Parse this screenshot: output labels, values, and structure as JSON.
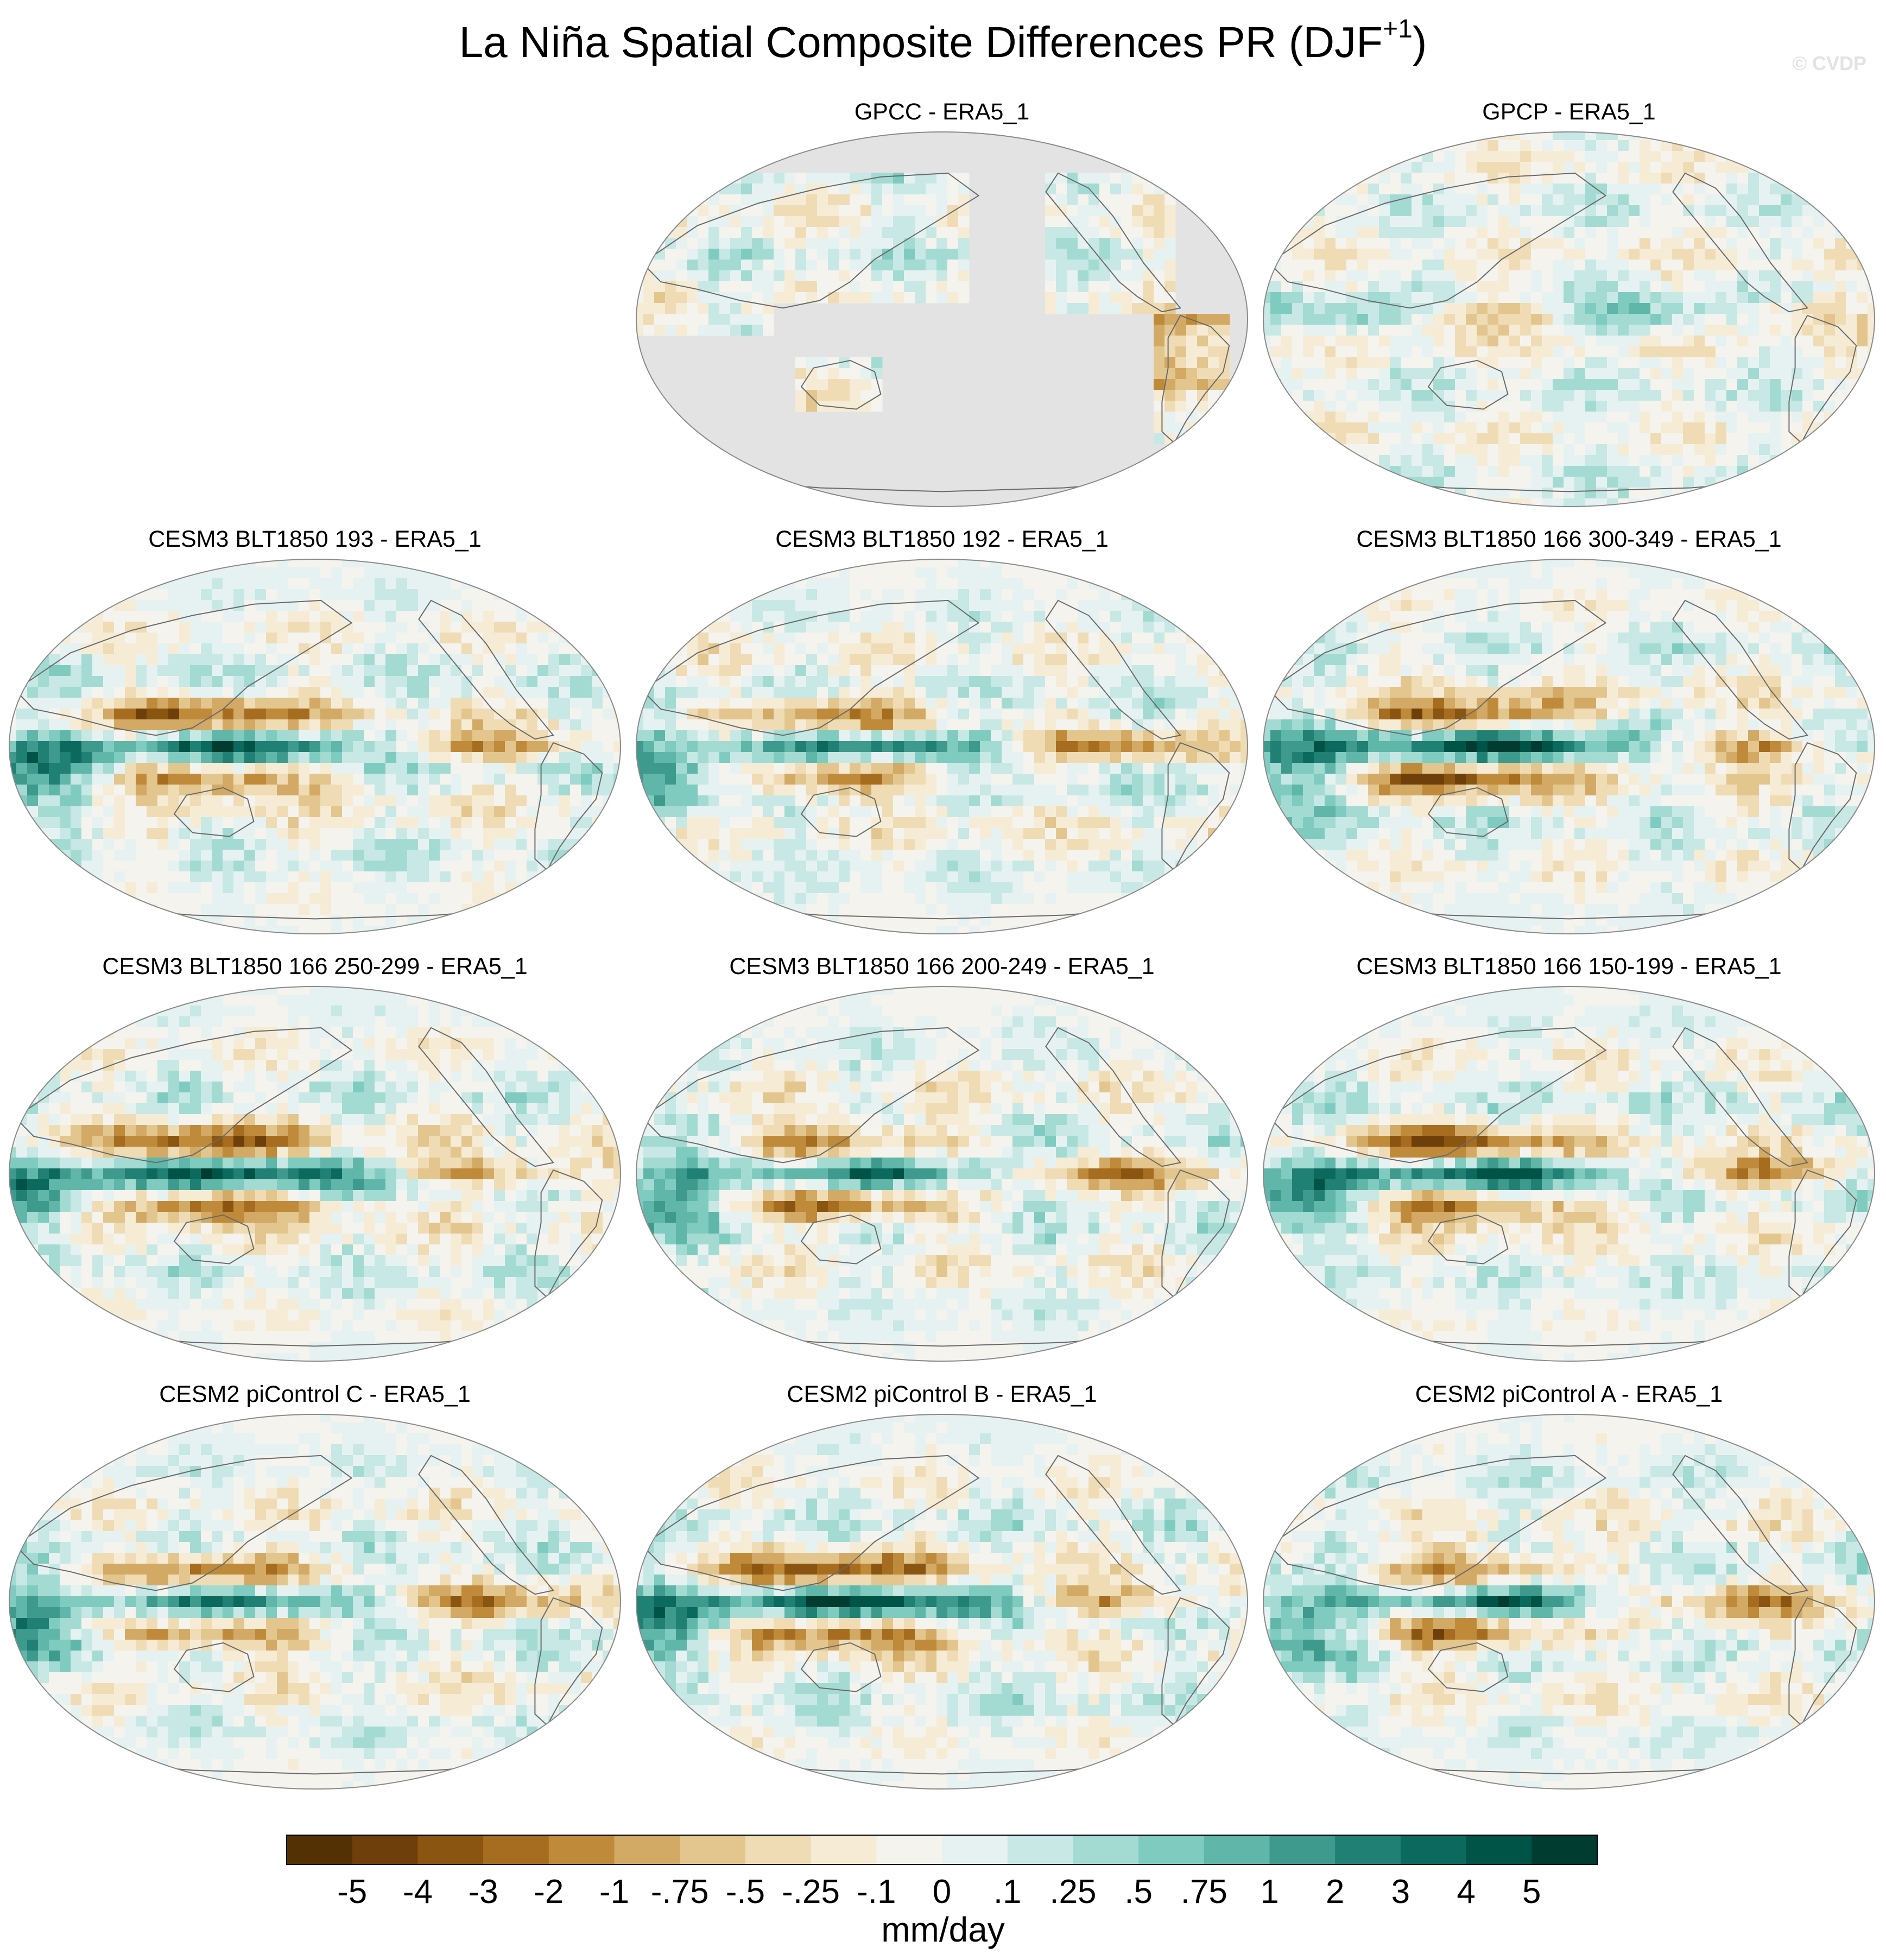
{
  "figure": {
    "title_main": "La Niña Spatial Composite Differences PR (DJF",
    "title_sup": "+1",
    "title_close": ")",
    "copyright": "© CVDP"
  },
  "panels": [
    {
      "id": "gpcc",
      "title": "GPCC - ERA5_1",
      "row": 0,
      "col": 1,
      "land_only": true,
      "seed": 3
    },
    {
      "id": "gpcp",
      "title": "GPCP - ERA5_1",
      "row": 0,
      "col": 2,
      "land_only": false,
      "seed": 7
    },
    {
      "id": "cesm3_193",
      "title": "CESM3 BLT1850 193 - ERA5_1",
      "row": 1,
      "col": 0,
      "land_only": false,
      "seed": 11
    },
    {
      "id": "cesm3_192",
      "title": "CESM3 BLT1850 192 - ERA5_1",
      "row": 1,
      "col": 1,
      "land_only": false,
      "seed": 13
    },
    {
      "id": "cesm3_166_300",
      "title": "CESM3 BLT1850 166 300-349 - ERA5_1",
      "row": 1,
      "col": 2,
      "land_only": false,
      "seed": 17
    },
    {
      "id": "cesm3_166_250",
      "title": "CESM3 BLT1850 166 250-299 - ERA5_1",
      "row": 2,
      "col": 0,
      "land_only": false,
      "seed": 19
    },
    {
      "id": "cesm3_166_200",
      "title": "CESM3 BLT1850 166 200-249 - ERA5_1",
      "row": 2,
      "col": 1,
      "land_only": false,
      "seed": 23
    },
    {
      "id": "cesm3_166_150",
      "title": "CESM3 BLT1850 166 150-199 - ERA5_1",
      "row": 2,
      "col": 2,
      "land_only": false,
      "seed": 29
    },
    {
      "id": "cesm2_c",
      "title": "CESM2 piControl C - ERA5_1",
      "row": 3,
      "col": 0,
      "land_only": false,
      "seed": 31
    },
    {
      "id": "cesm2_b",
      "title": "CESM2 piControl B - ERA5_1",
      "row": 3,
      "col": 1,
      "land_only": false,
      "seed": 37
    },
    {
      "id": "cesm2_a",
      "title": "CESM2 piControl A - ERA5_1",
      "row": 3,
      "col": 2,
      "land_only": false,
      "seed": 41
    }
  ],
  "colorbar": {
    "units": "mm/day",
    "labels": [
      "-5",
      "-4",
      "-3",
      "-2",
      "-1",
      "-.75",
      "-.5",
      "-.25",
      "-.1",
      "0",
      ".1",
      ".25",
      ".5",
      ".75",
      "1",
      "2",
      "3",
      "4",
      "5"
    ],
    "colors": [
      "#543005",
      "#6e3f0a",
      "#8a5411",
      "#a66c1f",
      "#bf8a3a",
      "#d2a965",
      "#e2c68e",
      "#efdcb5",
      "#f6ecd6",
      "#f5f3ee",
      "#e6f2f1",
      "#c7e8e4",
      "#a3dbd3",
      "#80cbc0",
      "#5fb6a9",
      "#3e9a8c",
      "#208073",
      "#0b6a5d",
      "#005347",
      "#003c30"
    ]
  }
}
